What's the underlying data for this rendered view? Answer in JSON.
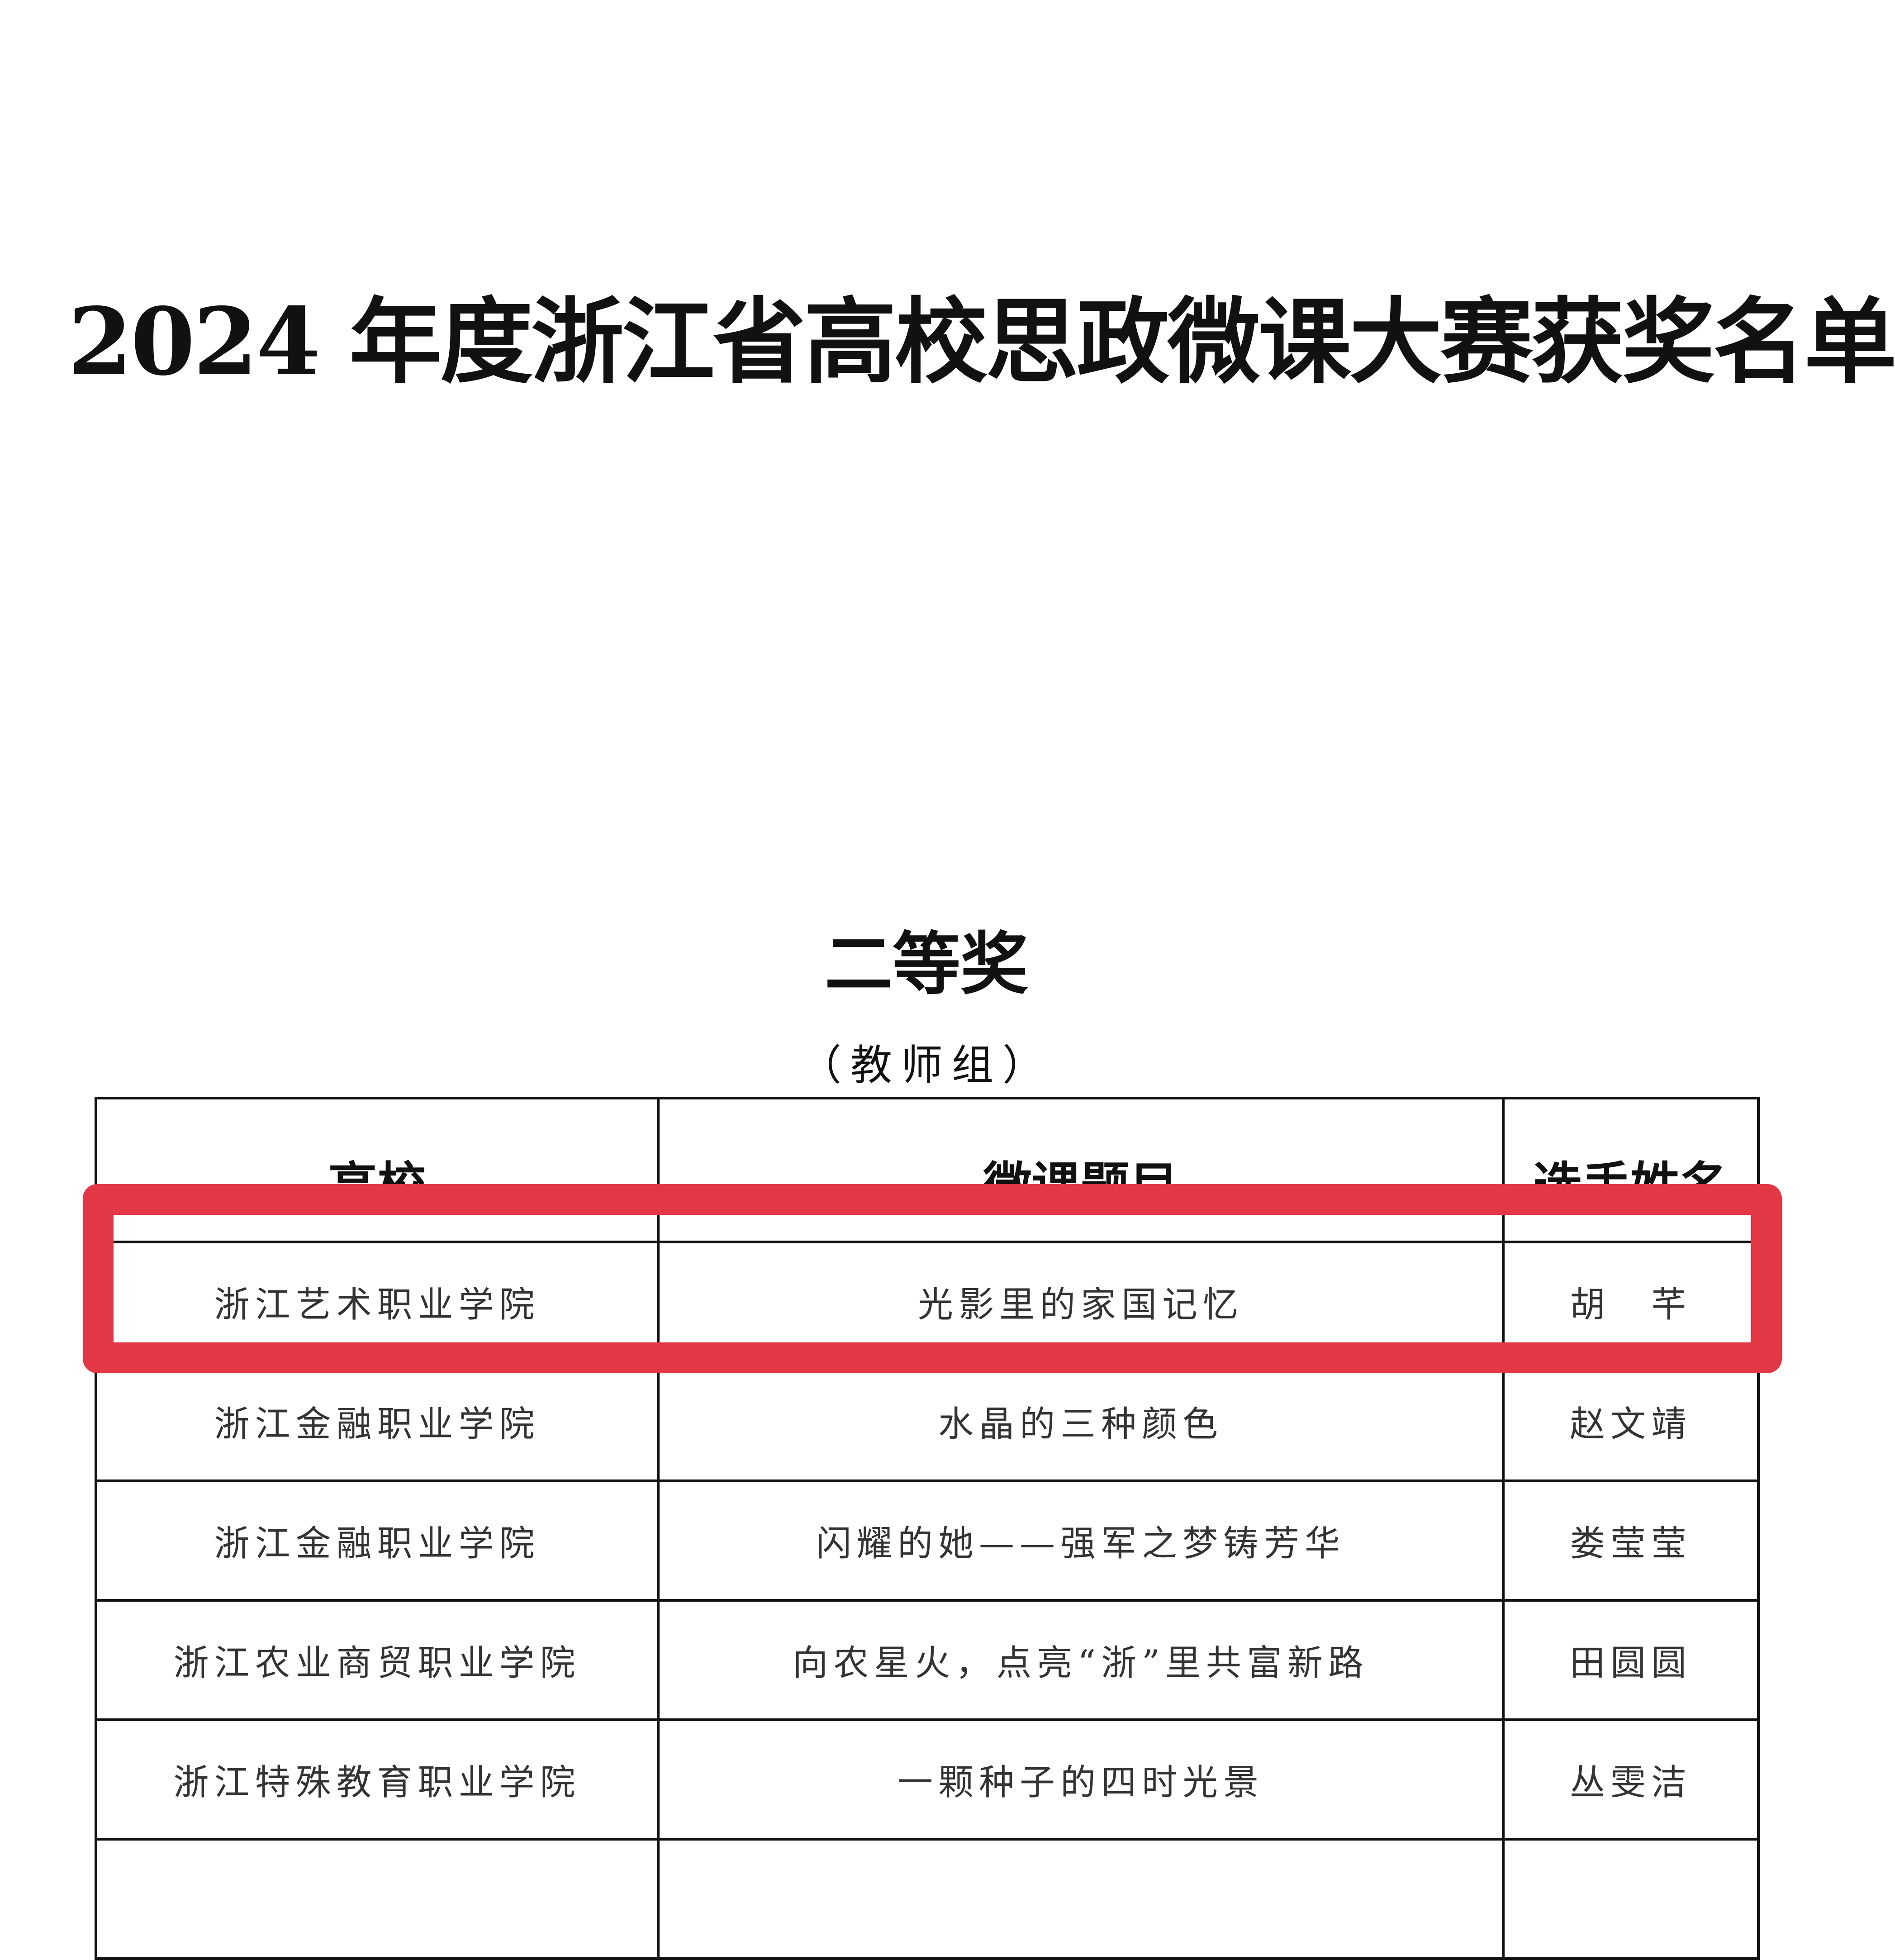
{
  "document": {
    "title": "2024 年度浙江省高校思政微课大赛获奖名单",
    "award_level": "二等奖",
    "group": "（教师组）"
  },
  "table": {
    "headers": [
      "高校",
      "微课题目",
      "选手姓名"
    ],
    "rows": [
      {
        "school": "浙江艺术职业学院",
        "topic": "光影里的家国记忆",
        "name": "胡　芊"
      },
      {
        "school": "浙江金融职业学院",
        "topic": "水晶的三种颜色",
        "name": "赵文靖"
      },
      {
        "school": "浙江金融职业学院",
        "topic": "闪耀的她——强军之梦铸芳华",
        "name": "娄莹莹"
      },
      {
        "school": "浙江农业商贸职业学院",
        "topic": "向农星火，点亮“浙”里共富新路",
        "name": "田圆圆"
      },
      {
        "school": "浙江特殊教育职业学院",
        "topic": "一颗种子的四时光景",
        "name": "丛雯洁"
      }
    ],
    "highlighted_row": 0
  },
  "colors": {
    "highlight": "#e23745"
  }
}
